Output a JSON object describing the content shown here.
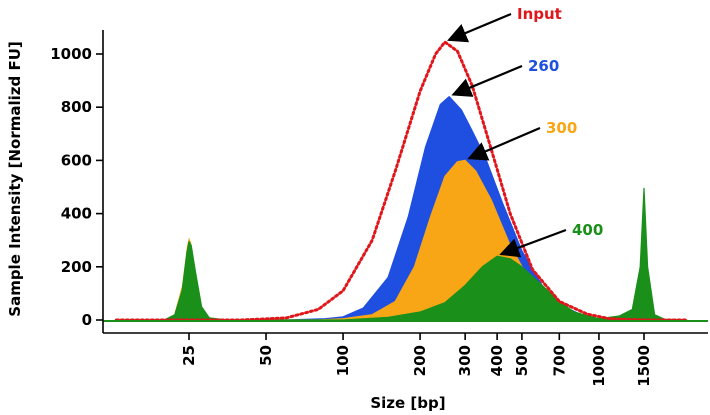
{
  "chart_data": {
    "type": "area",
    "xlabel": "Size [bp]",
    "ylabel": "Sample Intensity [Normalizd FU]",
    "x_scale": "log",
    "x_ticks": [
      {
        "value": 25,
        "label": "25"
      },
      {
        "value": 50,
        "label": "50"
      },
      {
        "value": 100,
        "label": "100"
      },
      {
        "value": 200,
        "label": "200"
      },
      {
        "value": 300,
        "label": "300"
      },
      {
        "value": 400,
        "label": "400"
      },
      {
        "value": 500,
        "label": "500"
      },
      {
        "value": 700,
        "label": "700"
      },
      {
        "value": 1000,
        "label": "1000"
      },
      {
        "value": 1500,
        "label": "1500"
      }
    ],
    "ylim": [
      0,
      1050
    ],
    "y_ticks": [
      {
        "value": 0,
        "label": "0"
      },
      {
        "value": 200,
        "label": "200"
      },
      {
        "value": 400,
        "label": "400"
      },
      {
        "value": 600,
        "label": "600"
      },
      {
        "value": 800,
        "label": "800"
      },
      {
        "value": 1000,
        "label": "1000"
      }
    ],
    "grid": false,
    "legend": "none",
    "series": [
      {
        "name": "Input",
        "style": "dotted-line",
        "color": "#e0161b",
        "x": [
          13,
          20,
          40,
          60,
          80,
          100,
          130,
          160,
          200,
          230,
          250,
          280,
          320,
          380,
          450,
          550,
          700,
          900,
          1100,
          1300,
          1600,
          2200
        ],
        "y": [
          0,
          0,
          0,
          8,
          40,
          110,
          300,
          560,
          860,
          1000,
          1045,
          1010,
          880,
          640,
          400,
          190,
          70,
          22,
          5,
          2,
          0,
          0
        ]
      },
      {
        "name": "260",
        "style": "filled-area",
        "color": "#1f4fe0",
        "x": [
          13,
          60,
          85,
          100,
          120,
          150,
          180,
          210,
          240,
          260,
          290,
          320,
          360,
          420,
          500,
          600,
          700,
          850,
          1000,
          2200
        ],
        "y": [
          0,
          0,
          5,
          12,
          45,
          160,
          390,
          650,
          810,
          840,
          790,
          710,
          610,
          440,
          260,
          130,
          60,
          20,
          5,
          0
        ]
      },
      {
        "name": "300",
        "style": "filled-area",
        "color": "#f9a616",
        "x": [
          13,
          80,
          100,
          130,
          160,
          190,
          220,
          250,
          280,
          300,
          330,
          380,
          450,
          550,
          650,
          800,
          1000,
          2200
        ],
        "y": [
          0,
          0,
          5,
          20,
          70,
          200,
          390,
          540,
          595,
          600,
          560,
          450,
          280,
          130,
          60,
          20,
          5,
          0
        ]
      },
      {
        "name": "400",
        "style": "filled-area",
        "color": "#1a8f1a",
        "x": [
          13,
          20,
          22,
          23.5,
          24.5,
          25,
          25.5,
          26.5,
          28,
          30,
          35,
          100,
          150,
          200,
          250,
          300,
          350,
          400,
          450,
          500,
          600,
          700,
          800,
          1000,
          1200,
          1350,
          1450,
          1500,
          1550,
          1650,
          1800,
          2200
        ],
        "y": [
          0,
          0,
          20,
          110,
          250,
          295,
          280,
          180,
          50,
          8,
          0,
          0,
          10,
          30,
          65,
          130,
          200,
          240,
          230,
          200,
          130,
          70,
          30,
          5,
          15,
          40,
          200,
          495,
          200,
          20,
          3,
          0
        ]
      },
      {
        "name": "Input",
        "style": "hidden",
        "color": "#f9a616",
        "x": [
          22,
          23.5,
          24.5,
          25,
          25.5,
          26.5,
          28
        ],
        "y": [
          30,
          130,
          275,
          310,
          290,
          190,
          55
        ]
      }
    ],
    "annotations": [
      {
        "text": "Input",
        "color": "#e0161b",
        "points_to_x": 250,
        "points_to_y": 1045
      },
      {
        "text": "260",
        "color": "#1f4fe0",
        "points_to_x": 260,
        "points_to_y": 840
      },
      {
        "text": "300",
        "color": "#f9a616",
        "points_to_x": 300,
        "points_to_y": 600
      },
      {
        "text": "400",
        "color": "#1a8f1a",
        "points_to_x": 400,
        "points_to_y": 240
      }
    ]
  }
}
